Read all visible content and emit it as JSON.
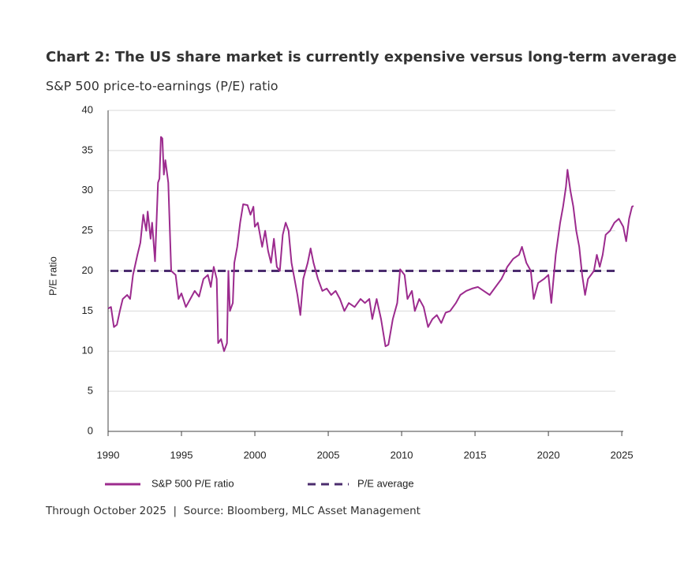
{
  "chart_data": {
    "type": "line",
    "title": "Chart 2: The US share market is currently expensive versus long-term average",
    "subtitle": "S&P 500 price-to-earnings (P/E) ratio",
    "y_label": "P/E ratio",
    "footer": "Through October 2025  |  Source: Bloomberg, MLC Asset Management",
    "x": [
      1990.0,
      1990.2,
      1990.4,
      1990.6,
      1990.8,
      1991.0,
      1991.3,
      1991.5,
      1991.7,
      1992.0,
      1992.2,
      1992.4,
      1992.6,
      1992.7,
      1992.9,
      1993.0,
      1993.2,
      1993.4,
      1993.5,
      1993.6,
      1993.7,
      1993.8,
      1993.9,
      1994.1,
      1994.3,
      1994.6,
      1994.8,
      1995.0,
      1995.3,
      1995.6,
      1995.9,
      1996.2,
      1996.5,
      1996.8,
      1997.0,
      1997.2,
      1997.4,
      1997.5,
      1997.7,
      1997.9,
      1998.1,
      1998.2,
      1998.3,
      1998.5,
      1998.6,
      1998.8,
      1999.0,
      1999.2,
      1999.5,
      1999.7,
      1999.9,
      2000.0,
      2000.2,
      2000.5,
      2000.7,
      2000.9,
      2001.1,
      2001.3,
      2001.5,
      2001.7,
      2001.9,
      2002.1,
      2002.3,
      2002.5,
      2002.7,
      2002.9,
      2003.1,
      2003.3,
      2003.6,
      2003.8,
      2004.0,
      2004.3,
      2004.6,
      2004.9,
      2005.2,
      2005.5,
      2005.8,
      2006.1,
      2006.4,
      2006.8,
      2007.2,
      2007.5,
      2007.8,
      2008.0,
      2008.3,
      2008.6,
      2008.9,
      2009.1,
      2009.4,
      2009.7,
      2009.9,
      2010.2,
      2010.4,
      2010.7,
      2010.9,
      2011.2,
      2011.5,
      2011.8,
      2012.1,
      2012.4,
      2012.7,
      2013.0,
      2013.3,
      2013.7,
      2014.0,
      2014.4,
      2014.8,
      2015.2,
      2015.6,
      2016.0,
      2016.4,
      2016.8,
      2017.2,
      2017.6,
      2018.0,
      2018.2,
      2018.5,
      2018.8,
      2019.0,
      2019.3,
      2019.7,
      2020.0,
      2020.2,
      2020.5,
      2020.8,
      2021.0,
      2021.2,
      2021.3,
      2021.5,
      2021.7,
      2021.9,
      2022.1,
      2022.3,
      2022.5,
      2022.7,
      2022.9,
      2023.1,
      2023.3,
      2023.5,
      2023.7,
      2023.9,
      2024.2,
      2024.5,
      2024.8,
      2025.1,
      2025.3,
      2025.5,
      2025.7,
      2025.8
    ],
    "series": [
      {
        "name": "S&P 500 P/E ratio",
        "color": "#9c2b8e",
        "values": [
          15.3,
          15.5,
          13.0,
          13.3,
          15.0,
          16.5,
          17.0,
          16.5,
          19.5,
          22.0,
          23.5,
          27.0,
          25.0,
          27.4,
          24.0,
          26.0,
          21.2,
          31.0,
          31.5,
          36.7,
          36.5,
          32.0,
          33.8,
          31.0,
          20.0,
          19.5,
          16.5,
          17.2,
          15.5,
          16.5,
          17.5,
          16.8,
          19.0,
          19.5,
          18.0,
          20.5,
          19.0,
          11.0,
          11.5,
          10.0,
          11.0,
          20.0,
          15.0,
          16.0,
          21.0,
          23.0,
          26.0,
          28.3,
          28.2,
          27.0,
          28.0,
          25.5,
          26.0,
          23.0,
          25.0,
          22.5,
          21.0,
          24.0,
          20.5,
          20.0,
          24.5,
          26.0,
          25.0,
          21.0,
          19.0,
          17.0,
          14.5,
          19.0,
          21.0,
          22.8,
          21.0,
          19.0,
          17.5,
          17.8,
          17.0,
          17.5,
          16.5,
          15.0,
          16.0,
          15.5,
          16.5,
          16.0,
          16.5,
          14.0,
          16.5,
          14.0,
          10.6,
          10.8,
          14.0,
          16.0,
          20.2,
          19.5,
          16.5,
          17.5,
          15.0,
          16.5,
          15.5,
          13.0,
          14.0,
          14.5,
          13.5,
          14.8,
          15.0,
          16.0,
          17.0,
          17.5,
          17.8,
          18.0,
          17.5,
          17.0,
          18.0,
          19.0,
          20.5,
          21.5,
          22.0,
          23.0,
          21.0,
          20.0,
          16.5,
          18.5,
          19.0,
          19.5,
          16.0,
          22.0,
          26.0,
          28.0,
          30.5,
          32.6,
          30.0,
          28.0,
          25.0,
          23.0,
          19.5,
          17.0,
          19.0,
          19.5,
          20.0,
          22.0,
          20.5,
          22.0,
          24.5,
          25.0,
          26.0,
          26.5,
          25.5,
          23.7,
          26.5,
          28.0,
          28.1
        ]
      }
    ],
    "reference_line": {
      "name": "P/E average",
      "value": 20,
      "color": "#4b2c6e",
      "dashed": true
    },
    "xlim": [
      1990,
      2025.8
    ],
    "xticks": [
      1990,
      1995,
      2000,
      2005,
      2010,
      2015,
      2020,
      2025
    ],
    "ylim": [
      0,
      40
    ],
    "yticks": [
      0,
      5,
      10,
      15,
      20,
      25,
      30,
      35,
      40
    ],
    "grid": true
  }
}
